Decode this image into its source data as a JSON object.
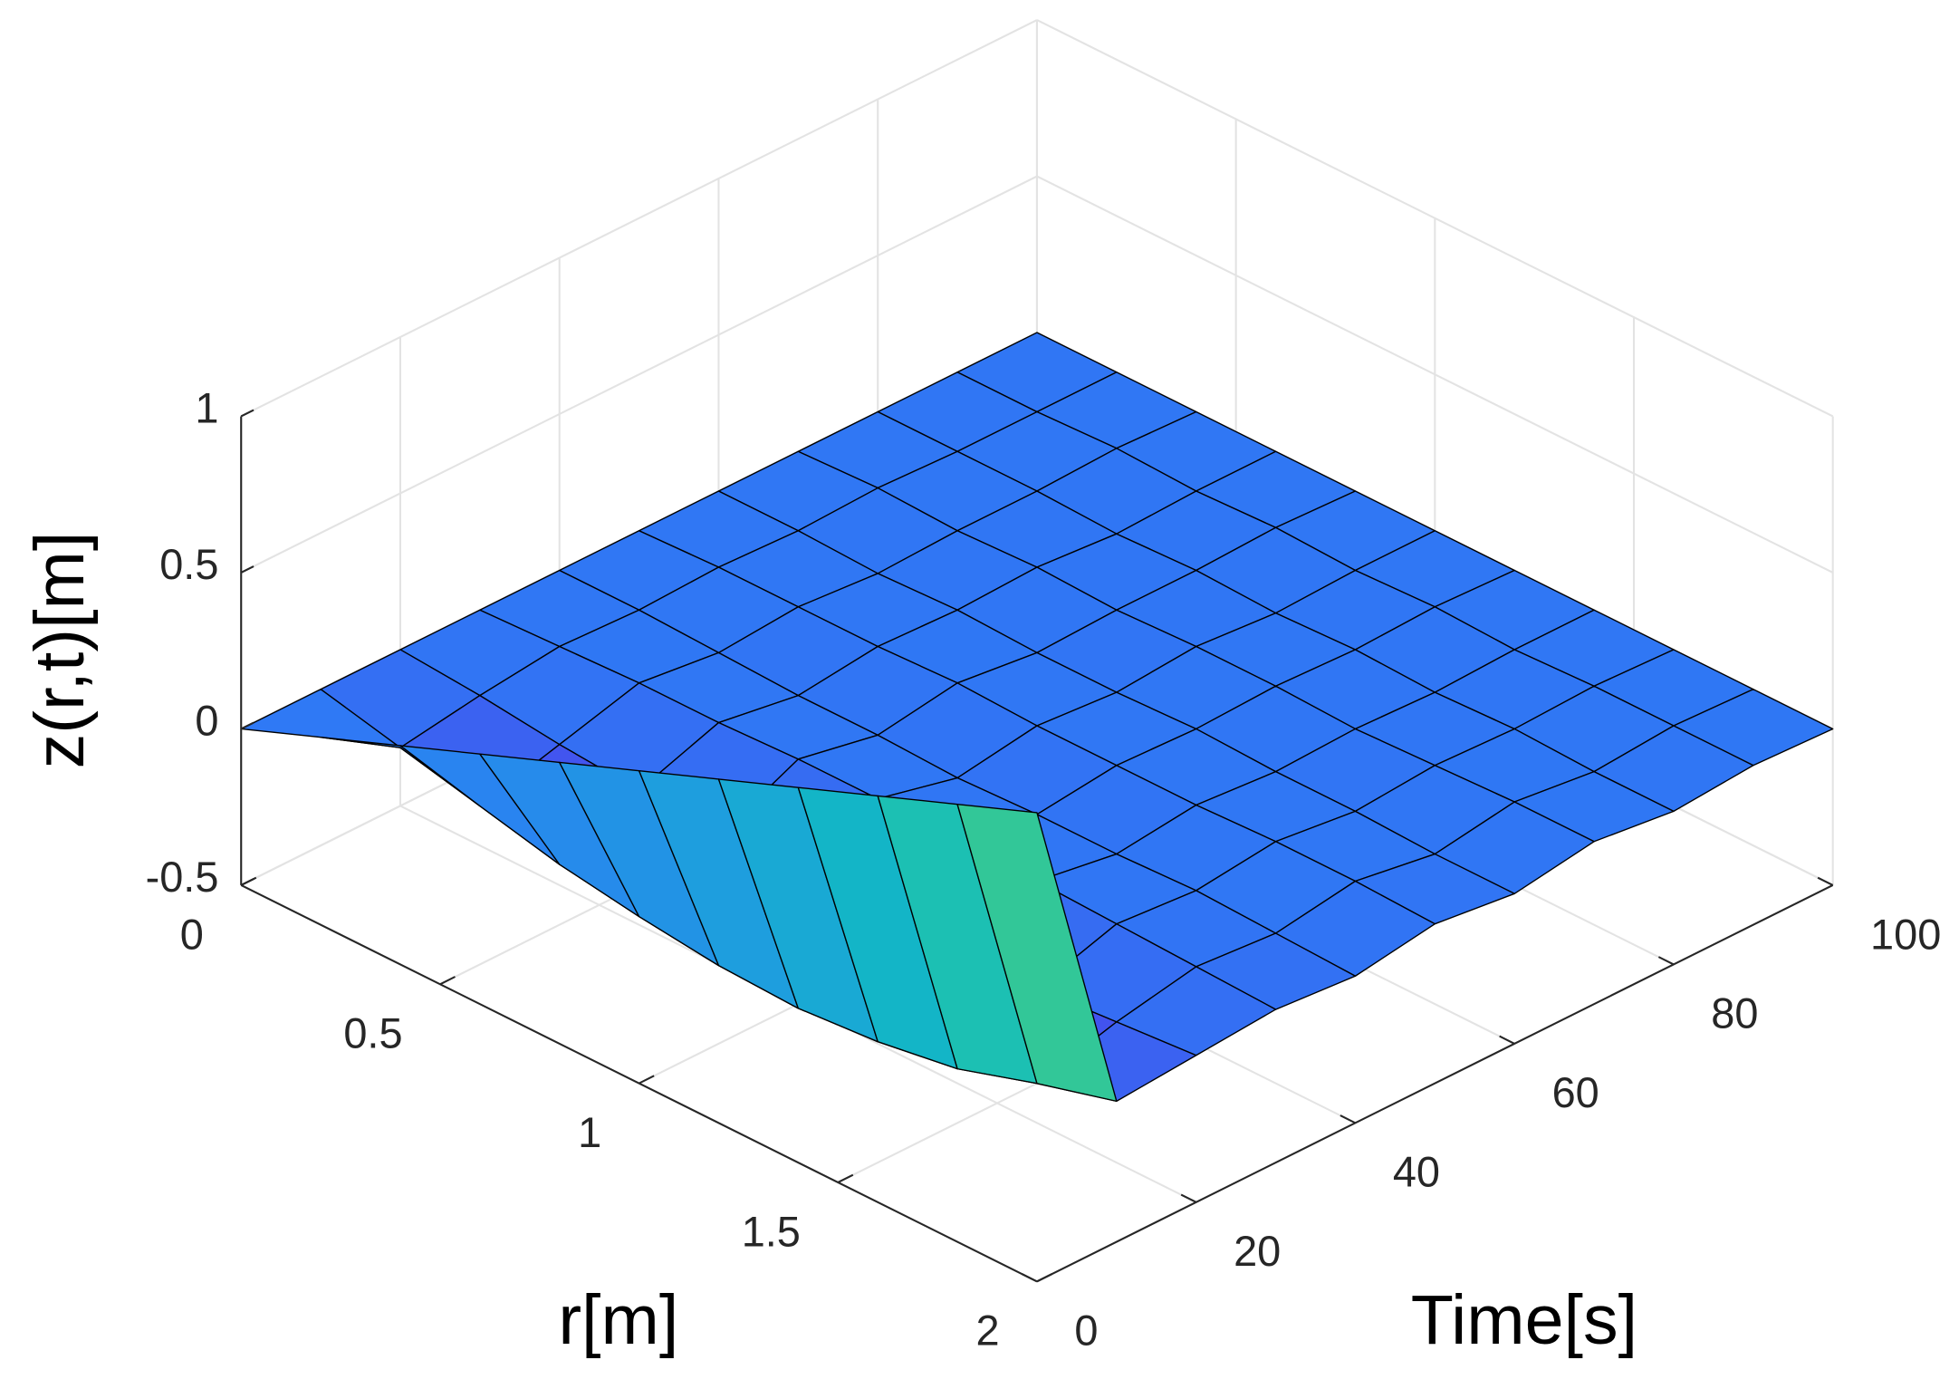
{
  "chart_data": {
    "type": "surface",
    "xlabel": "r[m]",
    "ylabel": "Time[s]",
    "zlabel": "z(r,t)[m]",
    "x": [
      0,
      0.2,
      0.4,
      0.6,
      0.8,
      1,
      1.2,
      1.4,
      1.6,
      1.8,
      2
    ],
    "y": [
      0,
      10,
      20,
      30,
      40,
      50,
      60,
      70,
      80,
      90,
      100
    ],
    "z": [
      [
        0,
        0.1,
        0.2,
        0.3,
        0.4,
        0.5,
        0.6,
        0.7,
        0.8,
        0.9,
        1.0
      ],
      [
        0,
        -0.06,
        -0.12,
        -0.18,
        -0.22,
        -0.25,
        -0.26,
        -0.24,
        -0.2,
        -0.12,
        -0.05
      ],
      [
        0,
        -0.02,
        -0.05,
        -0.07,
        -0.09,
        -0.1,
        -0.1,
        -0.09,
        -0.07,
        -0.05,
        -0.03
      ],
      [
        0,
        0.01,
        0.02,
        0.02,
        0.03,
        0.03,
        0.02,
        0.02,
        0.01,
        0,
        -0.01
      ],
      [
        0,
        0,
        -0.01,
        -0.02,
        -0.02,
        -0.03,
        -0.02,
        -0.02,
        -0.01,
        -0.02,
        -0.03
      ],
      [
        0,
        0.01,
        0.01,
        0.01,
        0.02,
        0.01,
        0.01,
        0.01,
        0.02,
        0.02,
        0.01
      ],
      [
        0,
        0,
        -0.01,
        0,
        -0.01,
        -0.01,
        0,
        -0.01,
        -0.01,
        -0.02,
        -0.02
      ],
      [
        0,
        0.01,
        0,
        0.01,
        0,
        0.01,
        0.01,
        0,
        0.01,
        0.02,
        0.02
      ],
      [
        0,
        0,
        0,
        -0.01,
        0,
        -0.01,
        0,
        -0.01,
        0,
        -0.01,
        -0.01
      ],
      [
        0,
        0,
        0.01,
        0,
        0.01,
        0,
        0.01,
        0,
        0.01,
        0.01,
        0.01
      ],
      [
        0,
        0,
        0,
        0,
        0,
        0,
        0,
        0,
        0,
        0,
        0
      ]
    ],
    "xlim": [
      0,
      2
    ],
    "ylim": [
      0,
      100
    ],
    "zlim": [
      -0.5,
      1
    ],
    "xticks": [
      0,
      0.5,
      1,
      1.5,
      2
    ],
    "yticks": [
      0,
      20,
      40,
      60,
      80,
      100
    ],
    "zticks": [
      -0.5,
      0,
      0.5,
      1
    ],
    "grid": true,
    "colormap": [
      "#3e26a8",
      "#4450ee",
      "#2d7cf5",
      "#1ca1dc",
      "#10bcc0",
      "#34c896",
      "#86c85c",
      "#d3bb3a",
      "#fdc030",
      "#f9fb15"
    ],
    "edgecolor": "#000000"
  }
}
